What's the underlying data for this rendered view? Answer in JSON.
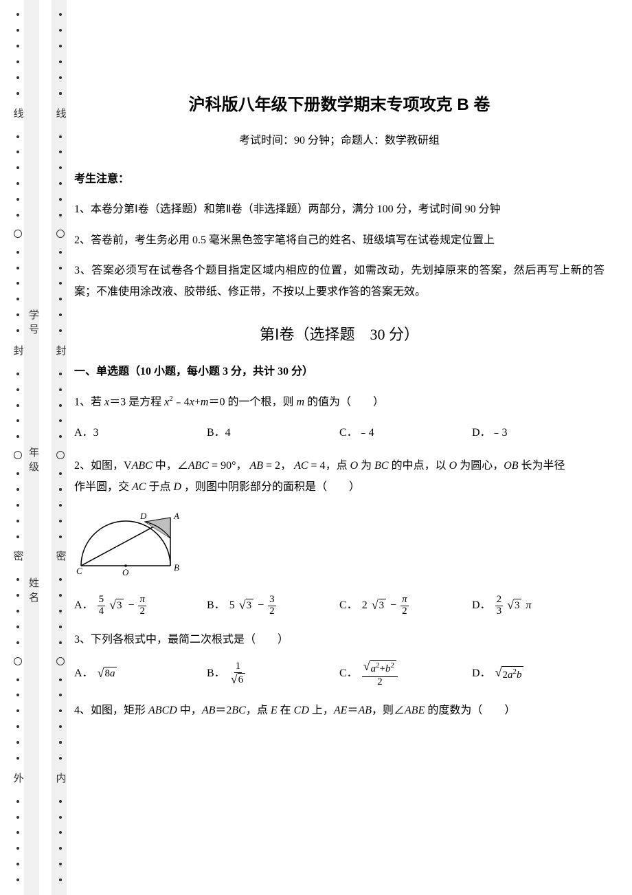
{
  "margin": {
    "outer_chars": [
      "线",
      "封",
      "密",
      "外"
    ],
    "inner_chars": [
      "线",
      "封",
      "密",
      "内"
    ],
    "fields": [
      "学号",
      "年级",
      "姓名"
    ]
  },
  "header": {
    "title": "沪科版八年级下册数学期末专项攻克 B 卷",
    "subtitle": "考试时间：90 分钟；命题人：数学教研组"
  },
  "notice": {
    "head": "考生注意：",
    "items": [
      "1、本卷分第Ⅰ卷（选择题）和第Ⅱ卷（非选择题）两部分，满分 100 分，考试时间 90 分钟",
      "2、答卷前，考生务必用 0.5 毫米黑色签字笔将自己的姓名、班级填写在试卷规定位置上",
      "3、答案必须写在试卷各个题目指定区域内相应的位置，如需改动，先划掉原来的答案，然后再写上新的答案；不准使用涂改液、胶带纸、修正带，不按以上要求作答的答案无效。"
    ]
  },
  "section1": {
    "head": "第Ⅰ卷（选择题　30 分）",
    "sub": "一、单选题（10 小题，每小题 3 分，共计 30 分）"
  },
  "q1": {
    "text_prefix": "1、若 ",
    "text_mid": "＝3 是方程 ",
    "text_suffix": "＝0 的一个根，则 ",
    "text_end": " 的值为（　　）",
    "opts": {
      "a": "A．3",
      "b": "B．4",
      "c": "C．﹣4",
      "d": "D．﹣3"
    }
  },
  "q2": {
    "line1_a": "2、如图，",
    "line1_b": " 中，",
    "line1_c": "，",
    "line1_d": "，",
    "line1_e": "，点 ",
    "line1_f": " 为 ",
    "line1_g": " 的中点，以 ",
    "line1_h": " 为圆心，",
    "line1_i": " 长为半径",
    "line2_a": "作半圆，交 ",
    "line2_b": " 于点 ",
    "line2_c": " ，则图中阴影部分的面积是（　　）",
    "opts_label": {
      "a": "A．",
      "b": "B．",
      "c": "C．",
      "d": "D．"
    }
  },
  "q3": {
    "text": "3、下列各根式中，最简二次根式是（　　）",
    "opts_label": {
      "a": "A．",
      "b": "B．",
      "c": "C．",
      "d": "D．"
    }
  },
  "q4": {
    "text_a": "4、如图，矩形 ",
    "text_b": " 中，",
    "text_c": "，点 ",
    "text_d": " 在 ",
    "text_e": " 上，",
    "text_f": "，则",
    "text_g": " 的度数为（　　）"
  },
  "colors": {
    "background": "#ffffff",
    "strip": "#f0f0f0",
    "text": "#000000",
    "dot": "#333333"
  }
}
